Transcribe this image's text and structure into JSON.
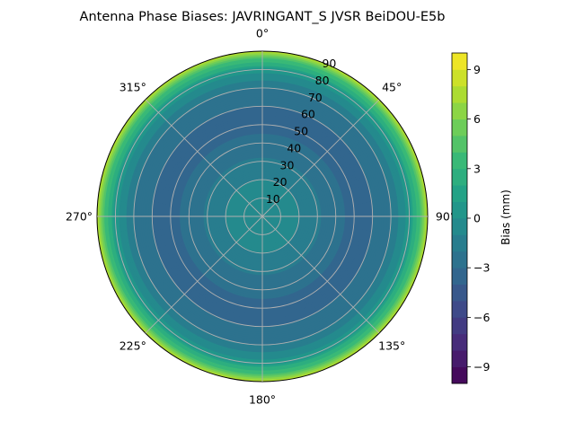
{
  "chart_data": {
    "type": "heatmap",
    "projection": "polar",
    "title": "Antenna Phase Biases: JAVRINGANT_S    JVSR BeiDOU-E5b",
    "angular_ticks": [
      "0°",
      "45°",
      "90°",
      "135°",
      "180°",
      "225°",
      "270°",
      "315°"
    ],
    "radial_ticks": [
      "10",
      "20",
      "30",
      "40",
      "50",
      "60",
      "70",
      "80",
      "90"
    ],
    "radial_range": [
      0,
      90
    ],
    "theta_direction": "clockwise",
    "theta_zero": "top",
    "grid": true,
    "colorbar": {
      "label": "Bias (mm)",
      "range": [
        -10,
        10
      ],
      "ticks": [
        "−9",
        "−6",
        "−3",
        "0",
        "3",
        "6",
        "9"
      ],
      "tick_values": [
        -9,
        -6,
        -3,
        0,
        3,
        6,
        9
      ],
      "levels": 20,
      "colormap": "viridis"
    },
    "radial_profile": {
      "zenith_angle": [
        0,
        10,
        20,
        30,
        40,
        50,
        60,
        70,
        80,
        85,
        90
      ],
      "bias_mm": [
        -0.5,
        -0.5,
        -1.0,
        -1.8,
        -2.8,
        -3.2,
        -3.0,
        -2.0,
        0.5,
        3.5,
        8.0
      ]
    }
  }
}
